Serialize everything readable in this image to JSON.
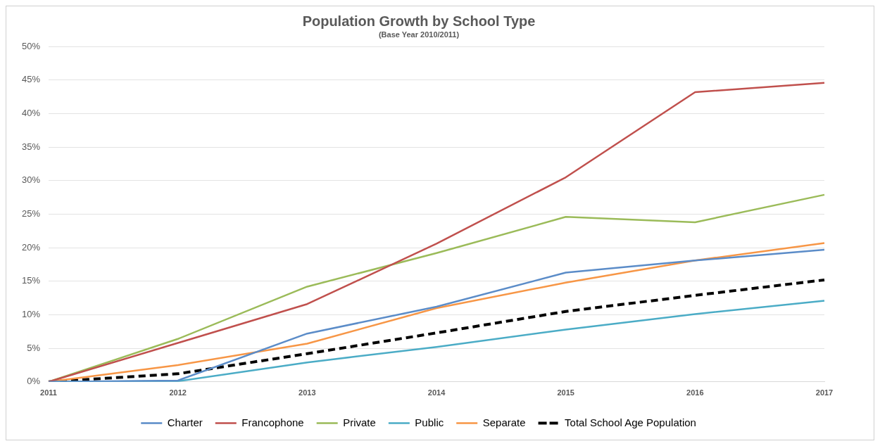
{
  "chart_data": {
    "type": "line",
    "title": "Population Growth by School Type",
    "subtitle": "(Base Year 2010/2011)",
    "categories": [
      "2011",
      "2012",
      "2013",
      "2014",
      "2015",
      "2016",
      "2017"
    ],
    "series": [
      {
        "name": "Charter",
        "color": "#5b8cc8",
        "values": [
          0,
          0.2,
          7.2,
          11.2,
          16.3,
          18.1,
          19.7
        ]
      },
      {
        "name": "Francophone",
        "color": "#c0504d",
        "values": [
          0,
          5.8,
          11.6,
          20.6,
          30.5,
          43.2,
          44.6
        ]
      },
      {
        "name": "Private",
        "color": "#9bbb59",
        "values": [
          0,
          6.4,
          14.2,
          19.2,
          24.6,
          23.8,
          27.9
        ]
      },
      {
        "name": "Public",
        "color": "#4bacc6",
        "values": [
          0,
          0.1,
          2.9,
          5.2,
          7.8,
          10.1,
          12.1
        ]
      },
      {
        "name": "Separate",
        "color": "#f79646",
        "values": [
          0,
          2.5,
          5.7,
          11,
          14.8,
          18.1,
          20.7
        ]
      },
      {
        "name": "Total School Age Population",
        "color": "#000000",
        "line_style": "dashed",
        "values": [
          0,
          1.2,
          4.2,
          7.3,
          10.5,
          12.9,
          15.2
        ]
      }
    ],
    "ylim": [
      0,
      50
    ],
    "yticks": [
      {
        "value": 0,
        "label": "0%"
      },
      {
        "value": 5,
        "label": "5%"
      },
      {
        "value": 10,
        "label": "10%"
      },
      {
        "value": 15,
        "label": "15%"
      },
      {
        "value": 20,
        "label": "20%"
      },
      {
        "value": 25,
        "label": "25%"
      },
      {
        "value": 30,
        "label": "30%"
      },
      {
        "value": 35,
        "label": "35%"
      },
      {
        "value": 40,
        "label": "40%"
      },
      {
        "value": 45,
        "label": "45%"
      },
      {
        "value": 50,
        "label": "50%"
      }
    ],
    "grid": "y",
    "legend": "bottom",
    "marker": "none"
  }
}
